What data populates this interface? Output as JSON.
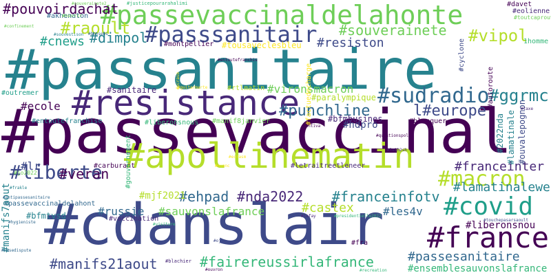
{
  "palette": {
    "dark_purple": "#440154",
    "indigo": "#482878",
    "blue_purple": "#3e4a89",
    "slate_blue": "#31688e",
    "teal_blue": "#26828e",
    "teal": "#1f9e89",
    "green_teal": "#35b779",
    "green": "#6ece58",
    "lime": "#b5de2b",
    "yellow": "#fde725"
  },
  "words": [
    {
      "text": "#passanitaire",
      "color": "#26828e"
    },
    {
      "text": "#passevaccinal",
      "color": "#440154"
    },
    {
      "text": "#cdanslair",
      "color": "#3e4a89"
    },
    {
      "text": "#resistance",
      "color": "#482878"
    },
    {
      "text": "#passevaccinaldelahonte",
      "color": "#6ece58"
    },
    {
      "text": "#apollinematin",
      "color": "#b5de2b"
    },
    {
      "text": "#passsanitair",
      "color": "#3e4a89"
    },
    {
      "text": "#france",
      "color": "#440154"
    },
    {
      "text": "#sudradio",
      "color": "#31688e"
    },
    {
      "text": "#covid",
      "color": "#1f9e89"
    },
    {
      "text": "#macron",
      "color": "#b5de2b"
    },
    {
      "text": "#liberte",
      "color": "#3e4a89"
    },
    {
      "text": "#raoult",
      "color": "#b5de2b"
    },
    {
      "text": "#punchline",
      "color": "#31688e"
    },
    {
      "text": "l#europe",
      "color": "#3e4a89"
    },
    {
      "text": "#pouvoirdachat",
      "color": "#440154"
    },
    {
      "text": "#ggrmc",
      "color": "#26828e"
    },
    {
      "text": "#vipol",
      "color": "#b5de2b"
    },
    {
      "text": "#souverainete",
      "color": "#6ece58"
    },
    {
      "text": "#dimpol",
      "color": "#26828e"
    },
    {
      "text": "#cnews",
      "color": "#1f9e89"
    },
    {
      "text": "#resiston",
      "color": "#3e4a89"
    },
    {
      "text": "#ehpad",
      "color": "#31688e"
    },
    {
      "text": "#nda2022",
      "color": "#482878"
    },
    {
      "text": "#franceinfotv",
      "color": "#26828e"
    },
    {
      "text": "#manifs21aout",
      "color": "#3e4a89"
    },
    {
      "text": "#fairereussirlafrance",
      "color": "#35b779"
    },
    {
      "text": "#passesanitaire",
      "color": "#31688e"
    },
    {
      "text": "#veran",
      "color": "#440154"
    },
    {
      "text": "#franceinter",
      "color": "#482878"
    },
    {
      "text": "#lamatinalewe",
      "color": "#26828e"
    },
    {
      "text": "#sauvonslafrance",
      "color": "#6ece58"
    },
    {
      "text": "#castex",
      "color": "#b5de2b"
    },
    {
      "text": "#les4v",
      "color": "#31688e"
    },
    {
      "text": "#liberonsnou",
      "color": "#440154"
    },
    {
      "text": "#ensemblesauvonslafrance",
      "color": "#35b779"
    },
    {
      "text": "#ecole",
      "color": "#440154"
    },
    {
      "text": "#sanitaire",
      "color": "#482878"
    },
    {
      "text": "#vironsmacron",
      "color": "#6ece58"
    },
    {
      "text": "#russie",
      "color": "#31688e"
    },
    {
      "text": "#bfmtvsd",
      "color": "#26828e"
    },
    {
      "text": "#mjf2021",
      "color": "#b5de2b"
    },
    {
      "text": "#lr",
      "color": "#3e4a89"
    },
    {
      "text": "#hdpro",
      "color": "#3e4a89"
    },
    {
      "text": "#bfmbusines",
      "color": "#482878"
    },
    {
      "text": "#manif8janvier",
      "color": "#6ece58"
    },
    {
      "text": "#entoutefranchise",
      "color": "#26828e"
    },
    {
      "text": "#montpellier",
      "color": "#440154"
    },
    {
      "text": "#tousaveclesbleu",
      "color": "#fde725"
    },
    {
      "text": "#akhenaton",
      "color": "#31688e"
    },
    {
      "text": "#carburant",
      "color": "#440154"
    },
    {
      "text": "#blanquer",
      "color": "#440154"
    },
    {
      "text": "#paralympique",
      "color": "#b5de2b"
    },
    {
      "text": "#outremer",
      "color": "#1f9e89"
    },
    {
      "text": "#liberonsnous",
      "color": "#35b779"
    },
    {
      "text": "#rtlmatin",
      "color": "#b5de2b"
    },
    {
      "text": "#jo2022",
      "color": "#6ece58"
    },
    {
      "text": "#passevaccinaldelahont",
      "color": "#31688e"
    },
    {
      "text": "#vaccination",
      "color": "#482878"
    },
    {
      "text": "#fra",
      "color": "#440154"
    },
    {
      "text": "#blachier",
      "color": "#482878"
    },
    {
      "text": "#davet",
      "color": "#440154"
    },
    {
      "text": "#eolienne",
      "color": "#482878"
    },
    {
      "text": "1homme",
      "color": "#35b779"
    },
    {
      "text": "#justicepourarahalimi",
      "color": "#35b779"
    },
    {
      "text": "#ouvrir",
      "color": "#6ece58"
    },
    {
      "text": "#toutcaprouva",
      "color": "#6ece58"
    },
    {
      "text": "#letraitreetleneer",
      "color": "#482878"
    },
    {
      "text": "#autoroute",
      "color": "#440154"
    },
    {
      "text": "#cyclone",
      "color": "#3e4a89"
    },
    {
      "text": "#2022nda",
      "color": "#26828e"
    },
    {
      "text": "#lamatinale",
      "color": "#26828e"
    },
    {
      "text": "#ouvalepognon",
      "color": "#3e4a89"
    },
    {
      "text": "#gouvernement",
      "color": "#35b779"
    },
    {
      "text": "#manifs7aout",
      "color": "#26828e"
    },
    {
      "text": "#factuedecharge",
      "color": "#fde725"
    },
    {
      "text": "#confinement",
      "color": "#6ece58"
    },
    {
      "text": "#souvestison",
      "color": "#26828e"
    },
    {
      "text": "#bonsens",
      "color": "#31688e"
    },
    {
      "text": "#entoutefranchis",
      "color": "#440154"
    },
    {
      "text": "#guitarmarte",
      "color": "#fde725"
    },
    {
      "text": "#taxe",
      "color": "#482878"
    },
    {
      "text": "#questionspol",
      "color": "#440154"
    },
    {
      "text": "#antiva",
      "color": "#440154"
    },
    {
      "text": "#le2h2sh",
      "color": "#482878"
    },
    {
      "text": "#frakle",
      "color": "#26828e"
    },
    {
      "text": "#antipassesanitaire",
      "color": "#31688e"
    },
    {
      "text": "#hygieniste",
      "color": "#31688e"
    },
    {
      "text": "#casedispute",
      "color": "#31688e"
    },
    {
      "text": "#visiture",
      "color": "#35b779"
    },
    {
      "text": "#lafay",
      "color": "#482878"
    },
    {
      "text": "#presidentielle2022",
      "color": "#35b779"
    },
    {
      "text": "#touchepasarsaoult",
      "color": "#3e4a89"
    },
    {
      "text": "#ojue",
      "color": "#3e4a89"
    },
    {
      "text": "#ouvron",
      "color": "#440154"
    },
    {
      "text": "#recreation",
      "color": "#35b779"
    },
    {
      "text": "#nuanc",
      "color": "#fde725"
    },
    {
      "text": "#ecrasm",
      "color": "#fde725"
    },
    {
      "text": "#souverainete2",
      "color": "#6ece58"
    },
    {
      "text": "#ecraso",
      "color": "#fde725"
    }
  ]
}
